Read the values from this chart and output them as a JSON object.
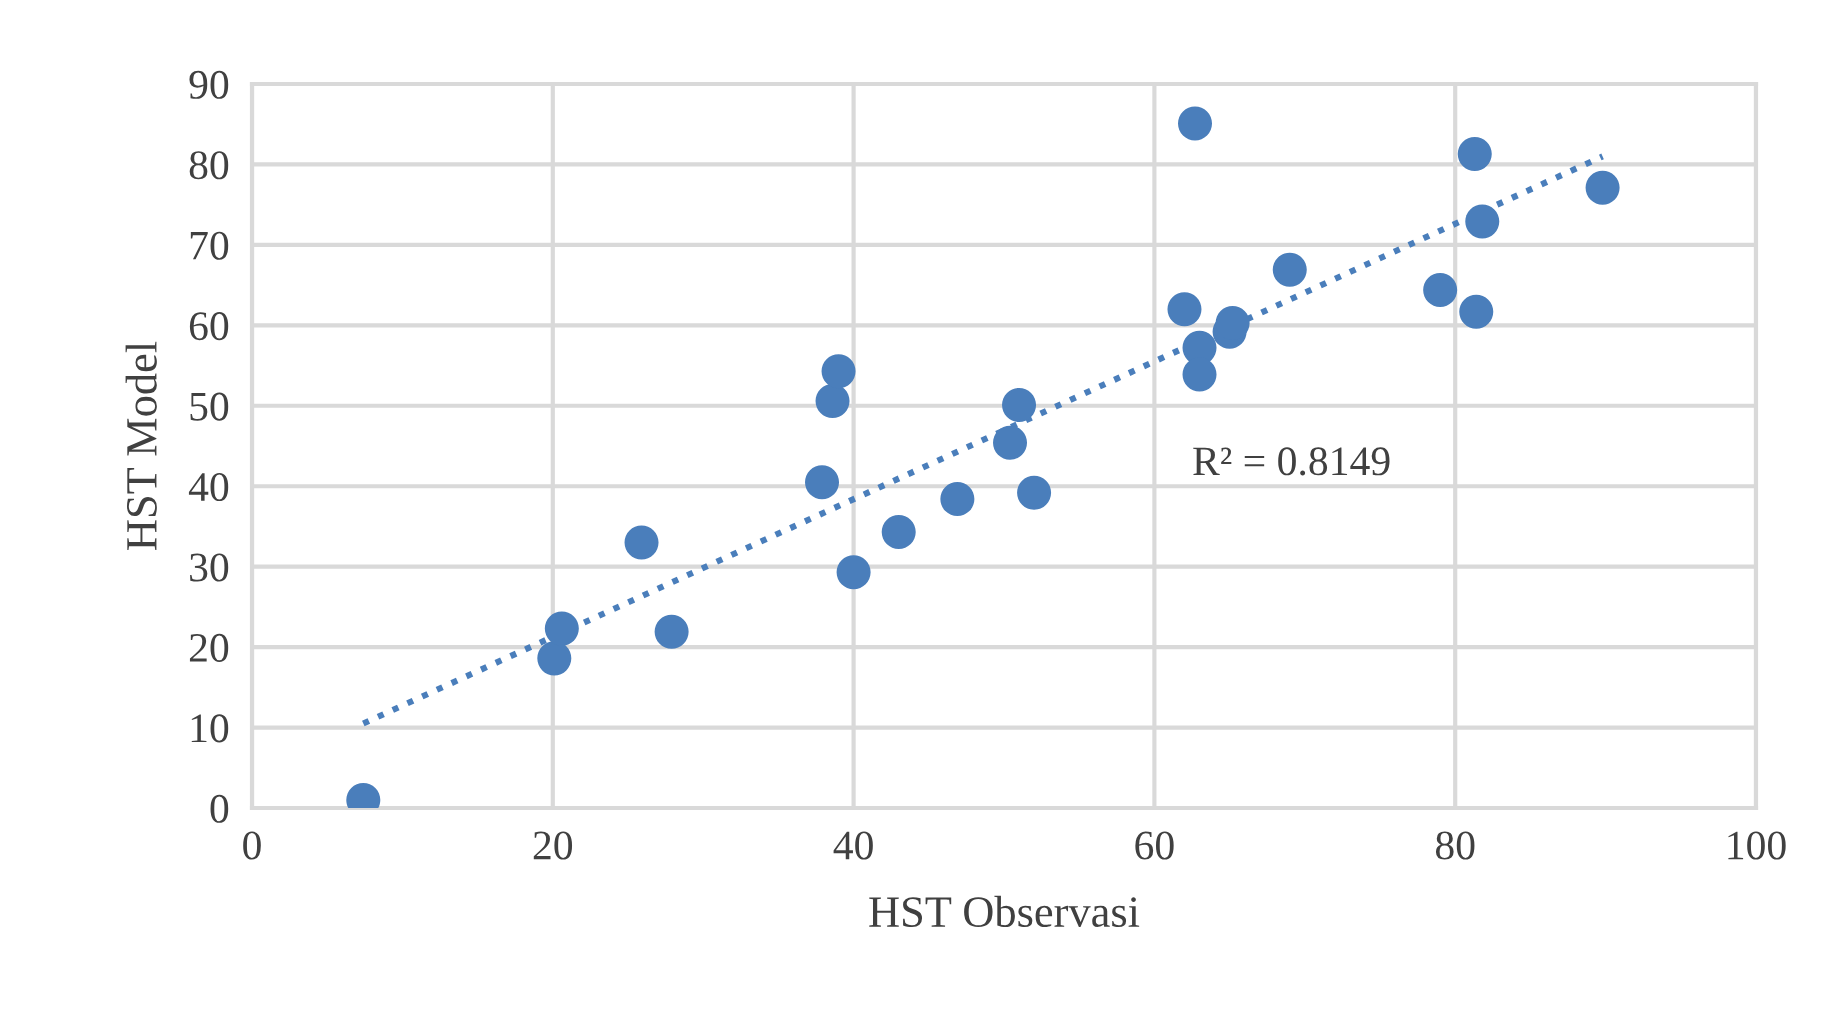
{
  "chart_data": {
    "type": "scatter",
    "xlabel": "HST Observasi",
    "ylabel": "HST Model",
    "series": [
      {
        "color": "#4a7ebb",
        "marker": "circle",
        "x": [
          7.4,
          20.1,
          20.6,
          25.9,
          27.9,
          37.9,
          38.6,
          39.0,
          40.0,
          43.0,
          46.9,
          50.4,
          51.0,
          52.0,
          62.0,
          62.7,
          63.0,
          63.0,
          65.0,
          65.2,
          69.0,
          79.0,
          81.3,
          81.4,
          81.8,
          89.8
        ],
        "values": [
          1.0,
          18.6,
          22.3,
          33.0,
          21.9,
          40.5,
          50.6,
          54.3,
          29.3,
          34.3,
          38.4,
          45.4,
          50.1,
          39.2,
          62.0,
          85.1,
          57.2,
          53.9,
          59.2,
          60.3,
          66.9,
          64.4,
          81.3,
          61.7,
          72.9,
          77.1
        ]
      },
      {
        "type": "line",
        "color": "#4a7ebb",
        "line_style": "dotted",
        "x": [
          7.4,
          89.8
        ],
        "values": [
          10.5,
          81.0
        ]
      }
    ],
    "annotations": [
      "R² = 0.8149"
    ],
    "xlim": [
      0,
      100
    ],
    "xticks": [
      0,
      20,
      40,
      60,
      80,
      100
    ],
    "ylim": [
      0,
      90
    ],
    "yticks": [
      0,
      10,
      20,
      30,
      40,
      50,
      60,
      70,
      80,
      90
    ],
    "grid": true,
    "legend": false
  }
}
